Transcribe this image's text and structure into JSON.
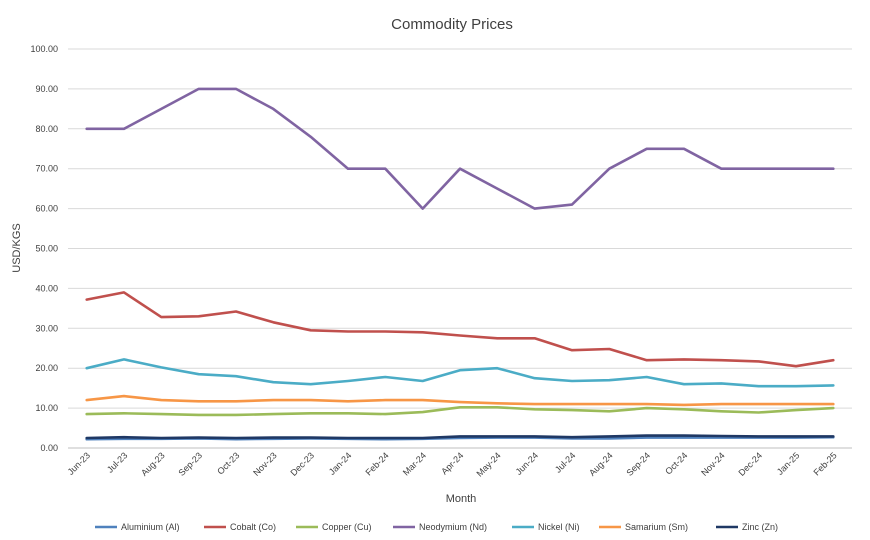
{
  "chart_data": {
    "type": "line",
    "title": "Commodity Prices",
    "xlabel": "Month",
    "ylabel": "USD/KGS",
    "ylim": [
      0,
      100
    ],
    "y_ticks": [
      "0.00",
      "10.00",
      "20.00",
      "30.00",
      "40.00",
      "50.00",
      "60.00",
      "70.00",
      "80.00",
      "90.00",
      "100.00"
    ],
    "grid": true,
    "legend_position": "bottom",
    "categories": [
      "Jun-23",
      "Jul-23",
      "Aug-23",
      "Sep-23",
      "Oct-23",
      "Nov-23",
      "Dec-23",
      "Jan-24",
      "Feb-24",
      "Mar-24",
      "Apr-24",
      "May-24",
      "Jun-24",
      "Jul-24",
      "Aug-24",
      "Sep-24",
      "Oct-24",
      "Nov-24",
      "Dec-24",
      "Jan-25",
      "Feb-25"
    ],
    "series": [
      {
        "name": "Aluminium (Al)",
        "color": "#4f81bd",
        "values": [
          2.2,
          2.3,
          2.3,
          2.4,
          2.2,
          2.3,
          2.4,
          2.3,
          2.2,
          2.3,
          2.5,
          2.6,
          2.6,
          2.4,
          2.4,
          2.6,
          2.6,
          2.6,
          2.6,
          2.6,
          2.7
        ]
      },
      {
        "name": "Cobalt (Co)",
        "color": "#c0504d",
        "values": [
          37.2,
          39.0,
          32.8,
          33.0,
          34.2,
          31.5,
          29.5,
          29.2,
          29.2,
          29.0,
          28.2,
          27.5,
          27.5,
          24.5,
          24.8,
          22.0,
          22.2,
          22.0,
          21.7,
          20.5,
          22.0
        ]
      },
      {
        "name": "Copper (Cu)",
        "color": "#9bbb59",
        "values": [
          8.5,
          8.7,
          8.5,
          8.3,
          8.3,
          8.5,
          8.7,
          8.7,
          8.5,
          9.0,
          10.2,
          10.2,
          9.7,
          9.5,
          9.2,
          10.0,
          9.7,
          9.2,
          8.9,
          9.5,
          10.0
        ]
      },
      {
        "name": "Neodymium (Nd)",
        "color": "#8064a2",
        "values": [
          80,
          80,
          85,
          90,
          90,
          85,
          78,
          70,
          70,
          60,
          70,
          65,
          60,
          61,
          70,
          75,
          75,
          70,
          70,
          70,
          70
        ]
      },
      {
        "name": "Nickel (Ni)",
        "color": "#4bacc6",
        "values": [
          20.0,
          22.2,
          20.2,
          18.5,
          18.0,
          16.5,
          16.0,
          16.8,
          17.8,
          16.8,
          19.5,
          20.0,
          17.5,
          16.8,
          17.0,
          17.8,
          16.0,
          16.2,
          15.5,
          15.5,
          15.7
        ]
      },
      {
        "name": "Samarium (Sm)",
        "color": "#f79646",
        "values": [
          12.0,
          13.0,
          12.0,
          11.7,
          11.7,
          12.0,
          12.0,
          11.7,
          12.0,
          12.0,
          11.5,
          11.2,
          11.0,
          11.0,
          11.0,
          11.0,
          10.8,
          11.0,
          11.0,
          11.0,
          11.0
        ]
      },
      {
        "name": "Zinc (Zn)",
        "color": "#1f3864",
        "values": [
          2.5,
          2.7,
          2.5,
          2.6,
          2.5,
          2.6,
          2.6,
          2.5,
          2.5,
          2.5,
          2.9,
          2.9,
          2.9,
          2.7,
          2.9,
          3.1,
          3.1,
          3.0,
          2.9,
          2.9,
          2.9
        ]
      }
    ]
  }
}
